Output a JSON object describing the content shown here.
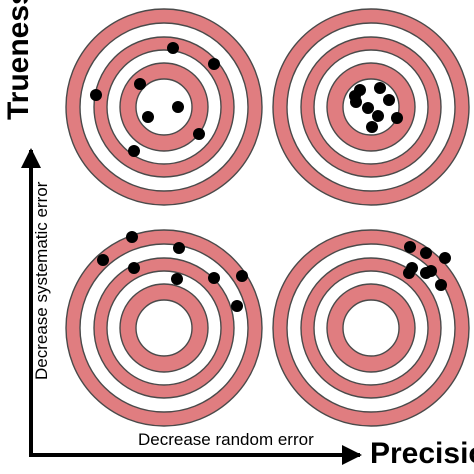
{
  "labels": {
    "y_axis_title": "Trueness",
    "x_axis_title": "Precisio",
    "y_axis_caption": "Decrease systematic error",
    "x_axis_caption": "Decrease random error"
  },
  "colors": {
    "ring_fill": "#e07d80",
    "ring_gap": "#ffffff",
    "ring_stroke": "#4a4a4a",
    "shot": "#000000",
    "axis": "#000000"
  },
  "targets": [
    {
      "name": "target-top-left",
      "shots": 8
    },
    {
      "name": "target-top-right",
      "shots": 9
    },
    {
      "name": "target-bottom-left",
      "shots": 8
    },
    {
      "name": "target-bottom-right",
      "shots": 8
    }
  ]
}
